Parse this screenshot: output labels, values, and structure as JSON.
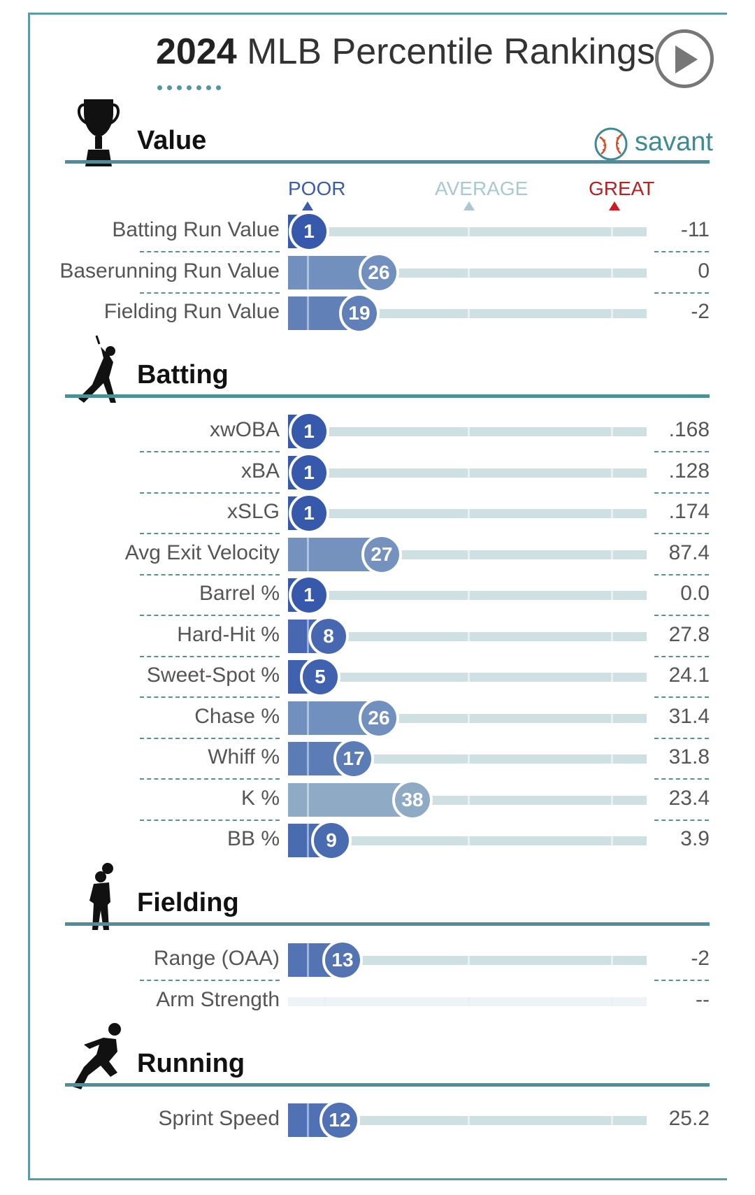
{
  "title": {
    "year": "2024",
    "text": "MLB Percentile Rankings"
  },
  "brand": {
    "name": "savant"
  },
  "colors": {
    "accent": "#4f8e98",
    "poor": "#3c5da8",
    "average": "#a9c8cf",
    "great": "#b02424"
  },
  "scale": {
    "poor": "POOR",
    "average": "AVERAGE",
    "great": "GREAT"
  },
  "sections": {
    "value": {
      "title": "Value",
      "icon": "trophy-icon"
    },
    "batting": {
      "title": "Batting",
      "icon": "batter-icon"
    },
    "fielding": {
      "title": "Fielding",
      "icon": "fielder-icon"
    },
    "running": {
      "title": "Running",
      "icon": "runner-icon"
    }
  },
  "chart_data": {
    "type": "bar",
    "orientation": "horizontal",
    "xlim": [
      0,
      100
    ],
    "groups": [
      {
        "section": "Value",
        "metrics": [
          {
            "label": "Batting Run Value",
            "percentile": 1,
            "value": "-11"
          },
          {
            "label": "Baserunning Run Value",
            "percentile": 26,
            "value": "0"
          },
          {
            "label": "Fielding Run Value",
            "percentile": 19,
            "value": "-2"
          }
        ]
      },
      {
        "section": "Batting",
        "metrics": [
          {
            "label": "xwOBA",
            "percentile": 1,
            "value": ".168"
          },
          {
            "label": "xBA",
            "percentile": 1,
            "value": ".128"
          },
          {
            "label": "xSLG",
            "percentile": 1,
            "value": ".174"
          },
          {
            "label": "Avg Exit Velocity",
            "percentile": 27,
            "value": "87.4"
          },
          {
            "label": "Barrel %",
            "percentile": 1,
            "value": "0.0"
          },
          {
            "label": "Hard-Hit %",
            "percentile": 8,
            "value": "27.8"
          },
          {
            "label": "Sweet-Spot %",
            "percentile": 5,
            "value": "24.1"
          },
          {
            "label": "Chase %",
            "percentile": 26,
            "value": "31.4"
          },
          {
            "label": "Whiff %",
            "percentile": 17,
            "value": "31.8"
          },
          {
            "label": "K %",
            "percentile": 38,
            "value": "23.4"
          },
          {
            "label": "BB %",
            "percentile": 9,
            "value": "3.9"
          }
        ]
      },
      {
        "section": "Fielding",
        "metrics": [
          {
            "label": "Range (OAA)",
            "percentile": 13,
            "value": "-2"
          },
          {
            "label": "Arm Strength",
            "percentile": null,
            "value": "--"
          }
        ]
      },
      {
        "section": "Running",
        "metrics": [
          {
            "label": "Sprint Speed",
            "percentile": 12,
            "value": "25.2"
          }
        ]
      }
    ]
  }
}
